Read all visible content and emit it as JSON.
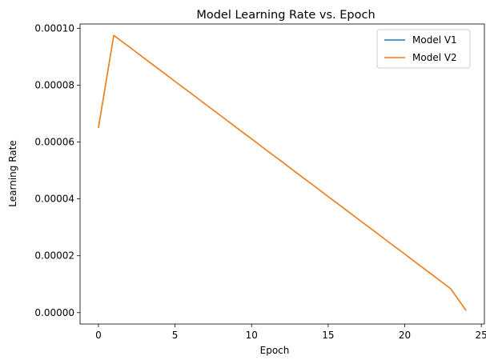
{
  "chart_data": {
    "type": "line",
    "title": "Model Learning Rate vs. Epoch",
    "xlabel": "Epoch",
    "ylabel": "Learning Rate",
    "xlim": [
      -1.2,
      25.2
    ],
    "ylim": [
      -4e-06,
      0.0001015
    ],
    "xticks": [
      0,
      5,
      10,
      15,
      20,
      25
    ],
    "xtick_labels": [
      "0",
      "5",
      "10",
      "15",
      "20",
      "25"
    ],
    "yticks": [
      0,
      2e-05,
      4e-05,
      6e-05,
      8e-05,
      0.0001
    ],
    "ytick_labels": [
      "0.00000",
      "0.00002",
      "0.00004",
      "0.00006",
      "0.00008",
      "0.00010"
    ],
    "grid": false,
    "legend_position": "top-right",
    "x": [
      0,
      1,
      2,
      3,
      4,
      5,
      6,
      7,
      8,
      9,
      10,
      11,
      12,
      13,
      14,
      15,
      16,
      17,
      18,
      19,
      20,
      21,
      22,
      23,
      24
    ],
    "series": [
      {
        "name": "Model V1",
        "color": "#1f77b4",
        "values": [
          6.5e-05,
          9.75e-05,
          9.35e-05,
          8.94e-05,
          8.54e-05,
          8.13e-05,
          7.73e-05,
          7.32e-05,
          6.92e-05,
          6.51e-05,
          6.11e-05,
          5.7e-05,
          5.3e-05,
          4.89e-05,
          4.49e-05,
          4.08e-05,
          3.68e-05,
          3.27e-05,
          2.87e-05,
          2.46e-05,
          2.06e-05,
          1.65e-05,
          1.25e-05,
          8.4e-06,
          8e-07
        ]
      },
      {
        "name": "Model V2",
        "color": "#ff7f0e",
        "values": [
          6.5e-05,
          9.75e-05,
          9.35e-05,
          8.94e-05,
          8.54e-05,
          8.13e-05,
          7.73e-05,
          7.32e-05,
          6.92e-05,
          6.51e-05,
          6.11e-05,
          5.7e-05,
          5.3e-05,
          4.89e-05,
          4.49e-05,
          4.08e-05,
          3.68e-05,
          3.27e-05,
          2.87e-05,
          2.46e-05,
          2.06e-05,
          1.65e-05,
          1.25e-05,
          8.4e-06,
          8e-07
        ]
      }
    ]
  }
}
